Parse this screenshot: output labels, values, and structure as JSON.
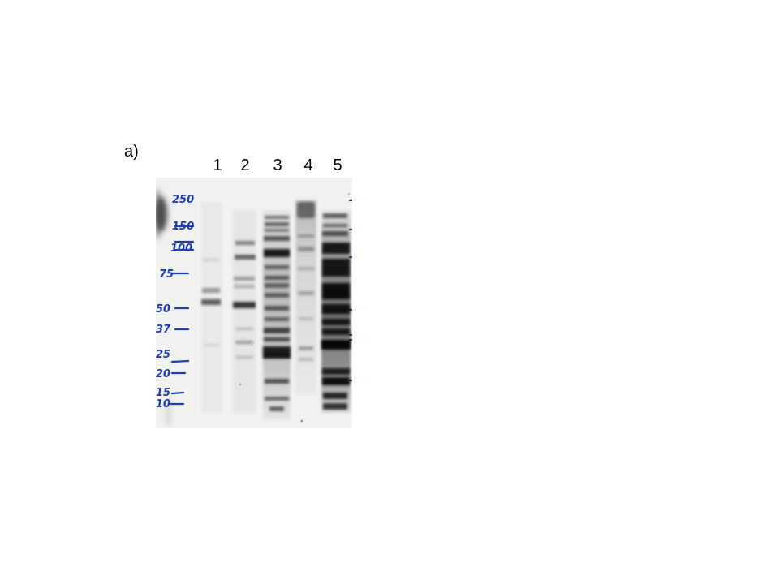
{
  "panel": {
    "label": "a)"
  },
  "lanes": {
    "labels": [
      "1",
      "2",
      "3",
      "4",
      "5"
    ]
  },
  "markers": {
    "labels": [
      "250",
      "150",
      "100",
      "75",
      "50",
      "37",
      "25",
      "20",
      "15",
      "10"
    ]
  },
  "colors": {
    "marker_ink": "#1f3fae",
    "band": "#1a1a1a",
    "membrane": "#f2f2f0"
  }
}
